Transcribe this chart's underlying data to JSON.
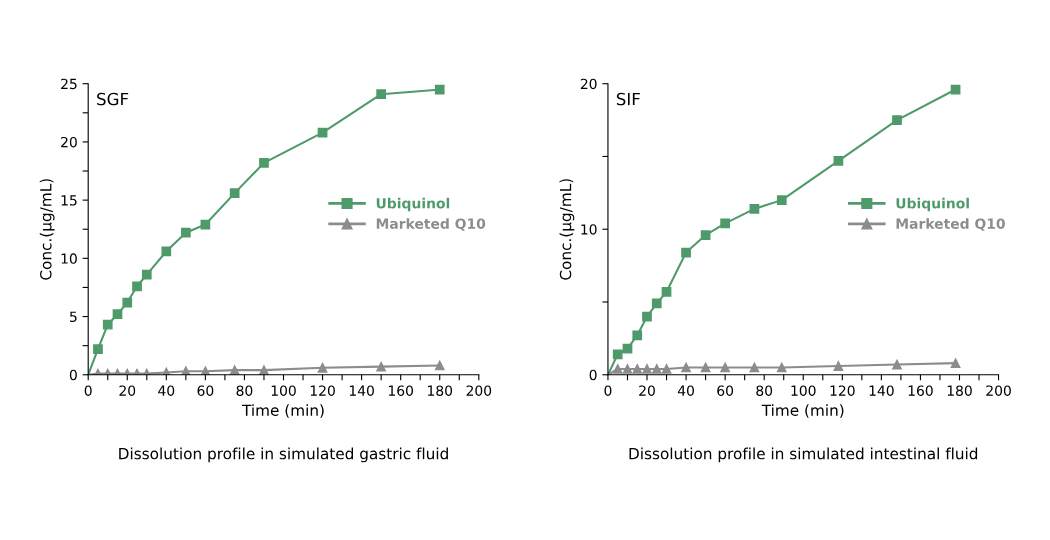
{
  "chart_data": [
    {
      "type": "line",
      "title": "Dissolution profile in simulated gastric fluid",
      "xlabel": "Time (min)",
      "ylabel": "Conc.(µg/mL)",
      "annotations": [
        "SGF"
      ],
      "legend": "right",
      "grid": false,
      "xlim": [
        0,
        200
      ],
      "xticks": [
        0,
        {
          "value": 10,
          "label": null
        },
        20,
        {
          "value": 30,
          "label": null
        },
        40,
        {
          "value": 50,
          "label": null
        },
        60,
        {
          "value": 70,
          "label": null
        },
        80,
        {
          "value": 90,
          "label": null
        },
        100,
        {
          "value": 110,
          "label": null
        },
        120,
        {
          "value": 130,
          "label": null
        },
        140,
        {
          "value": 150,
          "label": null
        },
        160,
        {
          "value": 170,
          "label": null
        },
        180,
        {
          "value": 190,
          "label": null
        },
        200
      ],
      "ylim": [
        0,
        25
      ],
      "yticks": [
        0,
        {
          "value": 2.5,
          "label": null
        },
        5,
        {
          "value": 7.5,
          "label": null
        },
        10,
        {
          "value": 12.5,
          "label": null
        },
        15,
        {
          "value": 17.5,
          "label": null
        },
        20,
        {
          "value": 22.5,
          "label": null
        },
        25
      ],
      "series": [
        {
          "name": "Ubiquinol",
          "color": "#4f9a6a",
          "marker": "square",
          "x": [
            0,
            5,
            10,
            15,
            20,
            25,
            30,
            40,
            50,
            60,
            75,
            90,
            120,
            150,
            180
          ],
          "values": [
            0,
            2.2,
            4.3,
            5.2,
            6.2,
            7.6,
            8.6,
            10.6,
            12.2,
            12.9,
            15.6,
            18.2,
            20.8,
            24.1,
            24.5
          ]
        },
        {
          "name": "Marketed Q10",
          "color": "#8c8c8c",
          "marker": "triangle",
          "x": [
            0,
            5,
            10,
            15,
            20,
            25,
            30,
            40,
            50,
            60,
            75,
            90,
            120,
            150,
            180
          ],
          "values": [
            0,
            0.1,
            0.1,
            0.1,
            0.1,
            0.1,
            0.1,
            0.2,
            0.3,
            0.3,
            0.4,
            0.4,
            0.6,
            0.7,
            0.8
          ]
        }
      ]
    },
    {
      "type": "line",
      "title": "Dissolution profile in simulated intestinal fluid",
      "xlabel": "Time (min)",
      "ylabel": "Conc.(µg/mL)",
      "annotations": [
        "SIF"
      ],
      "legend": "right",
      "grid": false,
      "xlim": [
        0,
        200
      ],
      "xticks": [
        0,
        {
          "value": 10,
          "label": null
        },
        20,
        {
          "value": 30,
          "label": null
        },
        40,
        {
          "value": 50,
          "label": null
        },
        60,
        {
          "value": 70,
          "label": null
        },
        80,
        {
          "value": 90,
          "label": null
        },
        100,
        {
          "value": 110,
          "label": null
        },
        120,
        {
          "value": 130,
          "label": null
        },
        140,
        {
          "value": 150,
          "label": null
        },
        160,
        {
          "value": 170,
          "label": null
        },
        180,
        {
          "value": 190,
          "label": null
        },
        200
      ],
      "ylim": [
        0,
        20
      ],
      "yticks": [
        0,
        {
          "value": 5,
          "label": null
        },
        10,
        {
          "value": 15,
          "label": null
        },
        20
      ],
      "series": [
        {
          "name": "Ubiquinol",
          "color": "#4f9a6a",
          "marker": "square",
          "x": [
            0,
            5,
            10,
            15,
            20,
            25,
            30,
            40,
            50,
            60,
            75,
            89,
            118,
            148,
            178
          ],
          "values": [
            0,
            1.4,
            1.8,
            2.7,
            4.0,
            4.9,
            5.7,
            8.4,
            9.6,
            10.4,
            11.4,
            12.0,
            14.7,
            17.5,
            19.6
          ]
        },
        {
          "name": "Marketed Q10",
          "color": "#8c8c8c",
          "marker": "triangle",
          "x": [
            0,
            5,
            10,
            15,
            20,
            25,
            30,
            40,
            50,
            60,
            75,
            89,
            118,
            148,
            178
          ],
          "values": [
            0,
            0.4,
            0.4,
            0.4,
            0.4,
            0.4,
            0.4,
            0.5,
            0.5,
            0.5,
            0.5,
            0.5,
            0.6,
            0.7,
            0.8
          ]
        }
      ]
    }
  ]
}
